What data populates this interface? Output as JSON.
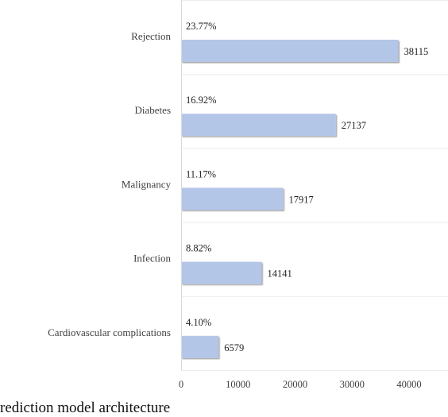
{
  "chart_data": {
    "type": "bar",
    "orientation": "horizontal",
    "categories": [
      "Rejection",
      "Diabetes",
      "Malignancy",
      "Infection",
      "Cardiovascular complications"
    ],
    "series": [
      {
        "values": [
          38115,
          27137,
          17917,
          14141,
          6579
        ],
        "color": "#b4c6e7",
        "data_labels": [
          "38115",
          "27137",
          "17917",
          "14141",
          "6579"
        ]
      },
      {
        "values": [
          23.77,
          16.92,
          11.17,
          8.82,
          4.1
        ],
        "unit": "%",
        "data_labels": [
          "23.77%",
          "16.92%",
          "11.17%",
          "8.82%",
          "4.10%"
        ]
      }
    ],
    "x_ticks": [
      "0",
      "10000",
      "20000",
      "30000",
      "40000"
    ],
    "xlim": [
      0,
      45000
    ],
    "grid": false,
    "legend": "none"
  },
  "caption": "rediction model architecture"
}
